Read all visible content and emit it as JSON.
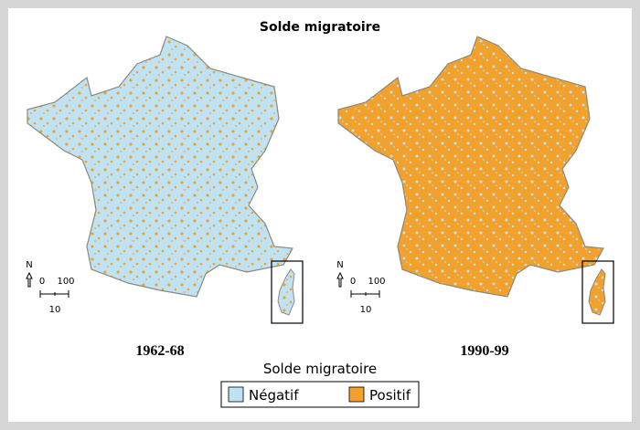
{
  "title": "Solde migratoire",
  "maps": [
    {
      "label": "1962-68",
      "scale": {
        "north": "N",
        "start": "0",
        "end": "100",
        "step": "10"
      }
    },
    {
      "label": "1990-99",
      "scale": {
        "north": "N",
        "start": "0",
        "end": "100",
        "step": "10"
      }
    }
  ],
  "legend": {
    "title": "Solde migratoire",
    "items": [
      "Négatif",
      "Positif"
    ]
  }
}
